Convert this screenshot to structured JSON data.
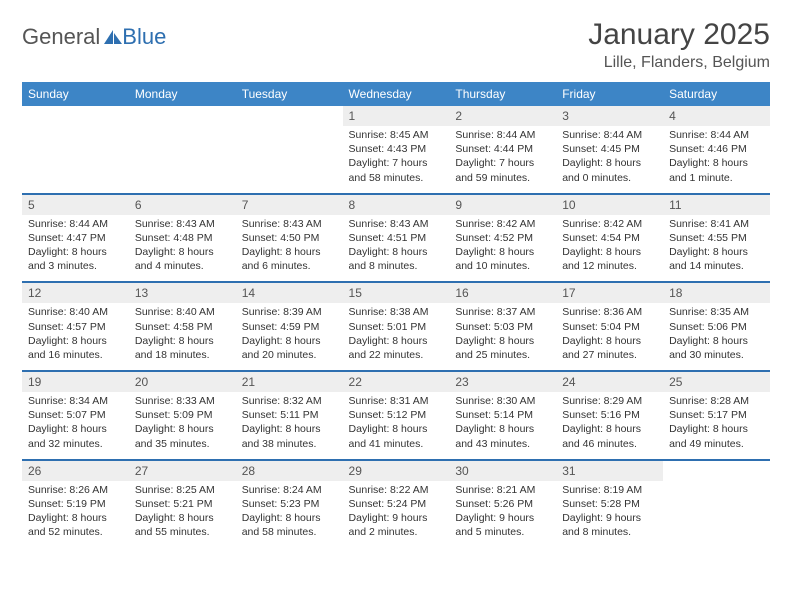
{
  "brand": {
    "part1": "General",
    "part2": "Blue"
  },
  "title": "January 2025",
  "location": "Lille, Flanders, Belgium",
  "colors": {
    "header_bg": "#3d85c6",
    "rule": "#2e6fb0",
    "daynum_bg": "#eeeeee",
    "text": "#333333",
    "page_bg": "#ffffff"
  },
  "day_headers": [
    "Sunday",
    "Monday",
    "Tuesday",
    "Wednesday",
    "Thursday",
    "Friday",
    "Saturday"
  ],
  "weeks": [
    [
      null,
      null,
      null,
      {
        "n": "1",
        "sr": "8:45 AM",
        "ss": "4:43 PM",
        "dl": "7 hours and 58 minutes."
      },
      {
        "n": "2",
        "sr": "8:44 AM",
        "ss": "4:44 PM",
        "dl": "7 hours and 59 minutes."
      },
      {
        "n": "3",
        "sr": "8:44 AM",
        "ss": "4:45 PM",
        "dl": "8 hours and 0 minutes."
      },
      {
        "n": "4",
        "sr": "8:44 AM",
        "ss": "4:46 PM",
        "dl": "8 hours and 1 minute."
      }
    ],
    [
      {
        "n": "5",
        "sr": "8:44 AM",
        "ss": "4:47 PM",
        "dl": "8 hours and 3 minutes."
      },
      {
        "n": "6",
        "sr": "8:43 AM",
        "ss": "4:48 PM",
        "dl": "8 hours and 4 minutes."
      },
      {
        "n": "7",
        "sr": "8:43 AM",
        "ss": "4:50 PM",
        "dl": "8 hours and 6 minutes."
      },
      {
        "n": "8",
        "sr": "8:43 AM",
        "ss": "4:51 PM",
        "dl": "8 hours and 8 minutes."
      },
      {
        "n": "9",
        "sr": "8:42 AM",
        "ss": "4:52 PM",
        "dl": "8 hours and 10 minutes."
      },
      {
        "n": "10",
        "sr": "8:42 AM",
        "ss": "4:54 PM",
        "dl": "8 hours and 12 minutes."
      },
      {
        "n": "11",
        "sr": "8:41 AM",
        "ss": "4:55 PM",
        "dl": "8 hours and 14 minutes."
      }
    ],
    [
      {
        "n": "12",
        "sr": "8:40 AM",
        "ss": "4:57 PM",
        "dl": "8 hours and 16 minutes."
      },
      {
        "n": "13",
        "sr": "8:40 AM",
        "ss": "4:58 PM",
        "dl": "8 hours and 18 minutes."
      },
      {
        "n": "14",
        "sr": "8:39 AM",
        "ss": "4:59 PM",
        "dl": "8 hours and 20 minutes."
      },
      {
        "n": "15",
        "sr": "8:38 AM",
        "ss": "5:01 PM",
        "dl": "8 hours and 22 minutes."
      },
      {
        "n": "16",
        "sr": "8:37 AM",
        "ss": "5:03 PM",
        "dl": "8 hours and 25 minutes."
      },
      {
        "n": "17",
        "sr": "8:36 AM",
        "ss": "5:04 PM",
        "dl": "8 hours and 27 minutes."
      },
      {
        "n": "18",
        "sr": "8:35 AM",
        "ss": "5:06 PM",
        "dl": "8 hours and 30 minutes."
      }
    ],
    [
      {
        "n": "19",
        "sr": "8:34 AM",
        "ss": "5:07 PM",
        "dl": "8 hours and 32 minutes."
      },
      {
        "n": "20",
        "sr": "8:33 AM",
        "ss": "5:09 PM",
        "dl": "8 hours and 35 minutes."
      },
      {
        "n": "21",
        "sr": "8:32 AM",
        "ss": "5:11 PM",
        "dl": "8 hours and 38 minutes."
      },
      {
        "n": "22",
        "sr": "8:31 AM",
        "ss": "5:12 PM",
        "dl": "8 hours and 41 minutes."
      },
      {
        "n": "23",
        "sr": "8:30 AM",
        "ss": "5:14 PM",
        "dl": "8 hours and 43 minutes."
      },
      {
        "n": "24",
        "sr": "8:29 AM",
        "ss": "5:16 PM",
        "dl": "8 hours and 46 minutes."
      },
      {
        "n": "25",
        "sr": "8:28 AM",
        "ss": "5:17 PM",
        "dl": "8 hours and 49 minutes."
      }
    ],
    [
      {
        "n": "26",
        "sr": "8:26 AM",
        "ss": "5:19 PM",
        "dl": "8 hours and 52 minutes."
      },
      {
        "n": "27",
        "sr": "8:25 AM",
        "ss": "5:21 PM",
        "dl": "8 hours and 55 minutes."
      },
      {
        "n": "28",
        "sr": "8:24 AM",
        "ss": "5:23 PM",
        "dl": "8 hours and 58 minutes."
      },
      {
        "n": "29",
        "sr": "8:22 AM",
        "ss": "5:24 PM",
        "dl": "9 hours and 2 minutes."
      },
      {
        "n": "30",
        "sr": "8:21 AM",
        "ss": "5:26 PM",
        "dl": "9 hours and 5 minutes."
      },
      {
        "n": "31",
        "sr": "8:19 AM",
        "ss": "5:28 PM",
        "dl": "9 hours and 8 minutes."
      },
      null
    ]
  ],
  "labels": {
    "sunrise": "Sunrise:",
    "sunset": "Sunset:",
    "daylight": "Daylight:"
  }
}
